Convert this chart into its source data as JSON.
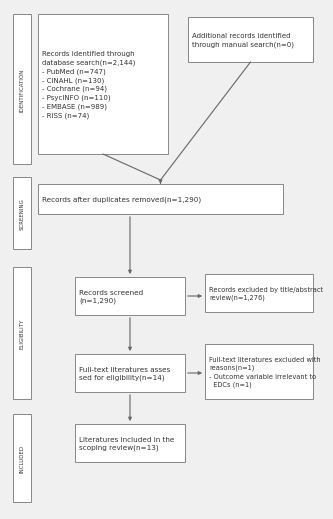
{
  "bg_color": "#f0f0f0",
  "box_edge_color": "#888888",
  "box_face_color": "#ffffff",
  "arrow_color": "#666666",
  "text_color": "#333333",
  "sidebar_face_color": "#ffffff",
  "sidebar_edge_color": "#888888",
  "sidebar_labels": [
    "IDENTIFICATION",
    "SCREENING",
    "ELIGIBILITY",
    "INCLUDED"
  ],
  "box1_text": "Records identified through\ndatabase search(n=2,144)\n- PubMed (n=747)\n- CINAHL (n=130)\n- Cochrane (n=94)\n- PsycINFO (n=110)\n- EMBASE (n=989)\n- RISS (n=74)",
  "box2_text": "Additional records identified\nthrough manual search(n=0)",
  "box3_text": "Records after duplicates removed(n=1,290)",
  "box4_text": "Records screened\n(n=1,290)",
  "box4r_text": "Records excluded by title/abstract\nreview(n=1,276)",
  "box5_text": "Full-text literatures asses\nsed for eligibility(n=14)",
  "box5r_text": "Full-text literatures excluded with\nreasons(n=1)\n- Outcome variable irrelevant to\n  EDCs (n=1)",
  "box6_text": "Literatures included in the\nscoping review(n=13)"
}
